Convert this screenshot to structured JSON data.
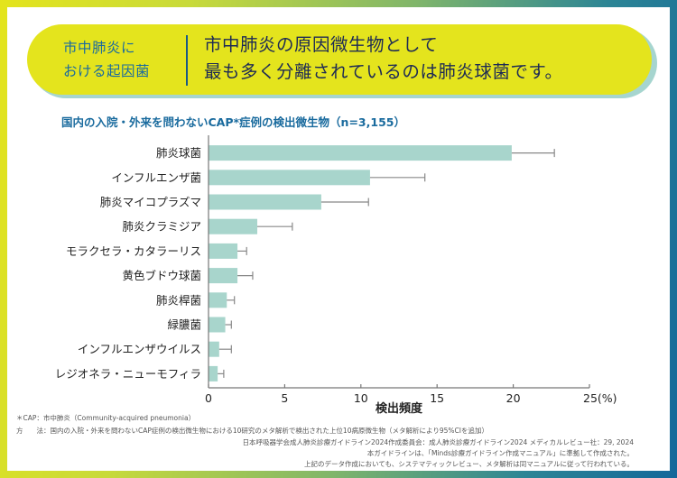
{
  "banner": {
    "left_line1": "市中肺炎に",
    "left_line2": "おける起因菌",
    "right_line1": "市中肺炎の原因微生物として",
    "right_line2": "最も多く分離されているのは肺炎球菌です。"
  },
  "chart_data": {
    "type": "bar",
    "orientation": "horizontal",
    "title": "国内の入院・外来を問わないCAP*症例の検出微生物（n=3,155）",
    "xlabel": "検出頻度",
    "ylabel": "",
    "x_unit": "(%)",
    "xlim": [
      0,
      25
    ],
    "xticks": [
      0,
      5,
      10,
      15,
      20,
      25
    ],
    "xtick_labels": [
      "0",
      "5",
      "10",
      "15",
      "20",
      "25(%)"
    ],
    "grid": false,
    "bar_color": "#a8d5cc",
    "error_bar_color": "#888888",
    "categories": [
      "肺炎球菌",
      "インフルエンザ菌",
      "肺炎マイコプラズマ",
      "肺炎クラミジア",
      "モラクセラ・カタラーリス",
      "黄色ブドウ球菌",
      "肺炎桿菌",
      "緑膿菌",
      "インフルエンザウイルス",
      "レジオネラ・ニューモフィラ"
    ],
    "values": [
      19.9,
      10.6,
      7.4,
      3.2,
      1.9,
      1.9,
      1.2,
      1.1,
      0.7,
      0.6
    ],
    "ci_upper": [
      22.7,
      14.2,
      10.5,
      5.5,
      2.5,
      2.9,
      1.7,
      1.5,
      1.5,
      1.0
    ]
  },
  "footnotes": {
    "abbrev": "＊CAP：市中肺炎（Community-acquired pneumonia）",
    "method_label": "方　　法：",
    "method_text": "国内の入院・外来を問わないCAP症例の検出微生物における10研究のメタ解析で検出された上位10病原微生物（メタ解析により95%CIを追加）",
    "source1": "日本呼吸器学会成人肺炎診療ガイドライン2024作成委員会：成人肺炎診療ガイドライン2024 メディカルレビュー社：29, 2024",
    "source2": "本ガイドラインは、「Minds診療ガイドライン作成マニュアル」に準拠して作成された。",
    "source3": "上記のデータ作成においても、システマティックレビュー、メタ解析は同マニュアルに従って行われている。"
  }
}
